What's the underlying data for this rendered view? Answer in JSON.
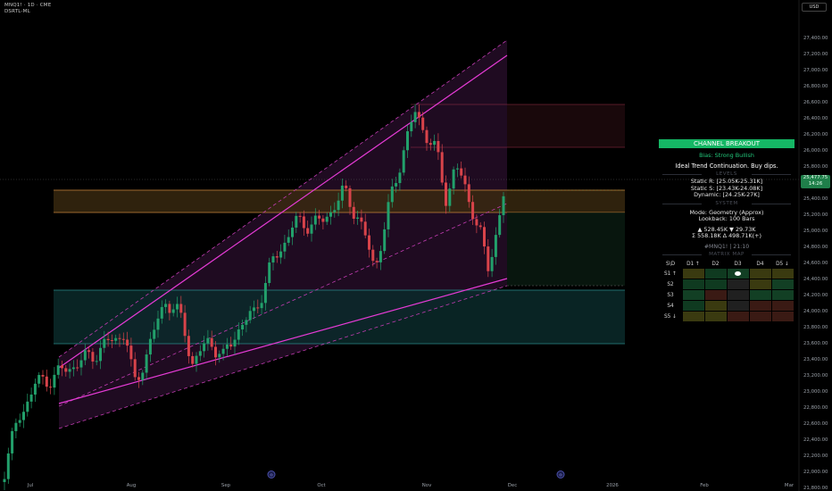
{
  "header": {
    "symbol_line": "MNQ1! · 1D · CME",
    "indicator_line": "DSRTL-ML"
  },
  "currency_button": "USD",
  "price_axis": {
    "labels": [
      "27,400.00",
      "27,200.00",
      "27,000.00",
      "26,800.00",
      "26,600.00",
      "26,400.00",
      "26,200.00",
      "26,000.00",
      "25,800.00",
      "25,600.00",
      "25,400.00",
      "25,200.00",
      "25,000.00",
      "24,800.00",
      "24,600.00",
      "24,400.00",
      "24,200.00",
      "24,000.00",
      "23,800.00",
      "23,600.00",
      "23,400.00",
      "23,200.00",
      "23,000.00",
      "22,800.00",
      "22,600.00",
      "22,400.00",
      "22,200.00",
      "22,000.00",
      "21,800.00"
    ],
    "last_price": "25,477.75",
    "countdown": "14:26"
  },
  "time_axis": {
    "labels": [
      "Jul",
      "Aug",
      "Sep",
      "Oct",
      "Nov",
      "Dec",
      "2026",
      "Feb",
      "Mar"
    ]
  },
  "colors": {
    "up": "#22a06b",
    "down": "#d8434a",
    "channel": "#e63bd6",
    "accent_green": "#15b765"
  },
  "dashboard": {
    "title": "CHANNEL BREAKOUT",
    "bias": "Bias: Strong Bullish",
    "note": "Ideal Trend Continuation. Buy dips.",
    "levels_header": "LEVELS",
    "static_r": "Static R: [25.05K-25.31K]",
    "static_s": "Static S: [23.43K-24.08K]",
    "dynamic": "Dynamic: [24.25K-27K]",
    "system_header": "SYSTEM",
    "mode": "Mode: Geometry (Approx)",
    "lookback": "Lookback: 100 Bars",
    "stats_1": "▲ 528.45K  ▼ 29.73K",
    "stats_2": "Σ 558.18K  Δ 498.71K(+)",
    "tag": "#MNQ1! | 21:10",
    "matrix_header": "MATRIX MAP",
    "matrix": {
      "corner": "S\\D",
      "columns": [
        "D1 ↑",
        "D2",
        "D3",
        "D4",
        "D5 ↓"
      ],
      "rows": [
        "S1 ↑",
        "S2",
        "S3",
        "S4",
        "S5 ↓"
      ],
      "cells": [
        [
          "#3a3a10",
          "#0f3a20",
          "#123f24",
          "#3a3a10",
          "#3a3a10"
        ],
        [
          "#0f3a20",
          "#0f3a20",
          "#202020",
          "#3a3a10",
          "#123f24"
        ],
        [
          "#123f24",
          "#3a1a14",
          "#202020",
          "#123f24",
          "#123f24"
        ],
        [
          "#0f3a20",
          "#3a3a10",
          "#202020",
          "#3a1a14",
          "#3a1a14"
        ],
        [
          "#3a3a10",
          "#3a3a10",
          "#3a1a14",
          "#3a1a14",
          "#3a1a14"
        ]
      ],
      "active_cell": [
        0,
        2
      ]
    }
  }
}
